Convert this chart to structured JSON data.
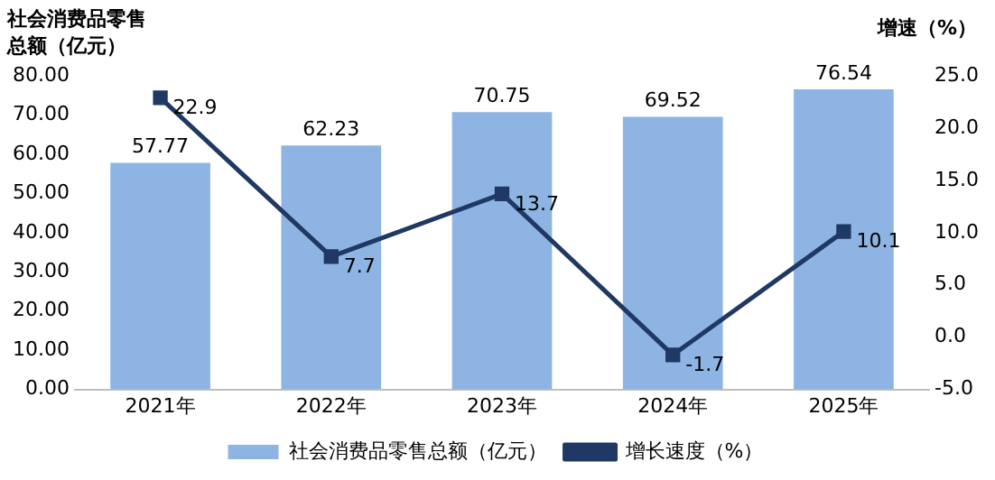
{
  "chart_data": {
    "type": "bar",
    "ylabel": "社会消费品零售总额（亿元）",
    "y2label": "增速（%）",
    "categories": [
      "2021年",
      "2022年",
      "2023年",
      "2024年",
      "2025年"
    ],
    "series": [
      {
        "name": "社会消费品零售总额（亿元）",
        "color": "#8db4e2",
        "values": [
          57.77,
          62.23,
          70.75,
          69.52,
          76.54
        ]
      },
      {
        "name": "增长速度（%）",
        "type": "line",
        "axis": "y2",
        "color": "#1f3864",
        "marker": "square",
        "values": [
          22.9,
          7.7,
          13.7,
          -1.7,
          10.1
        ]
      }
    ],
    "ylim": [
      0,
      80
    ],
    "yticks": [
      {
        "value": 0,
        "label": "0.00"
      },
      {
        "value": 10,
        "label": "10.00"
      },
      {
        "value": 20,
        "label": "20.00"
      },
      {
        "value": 30,
        "label": "30.00"
      },
      {
        "value": 40,
        "label": "40.00"
      },
      {
        "value": 50,
        "label": "50.00"
      },
      {
        "value": 60,
        "label": "60.00"
      },
      {
        "value": 70,
        "label": "70.00"
      },
      {
        "value": 80,
        "label": "80.00"
      }
    ],
    "y2lim": [
      -5,
      25
    ],
    "y2ticks": [
      {
        "value": -5,
        "label": "-5.0"
      },
      {
        "value": 0,
        "label": "0.0"
      },
      {
        "value": 5,
        "label": "5.0"
      },
      {
        "value": 10,
        "label": "10.0"
      },
      {
        "value": 15,
        "label": "15.0"
      },
      {
        "value": 20,
        "label": "20.0"
      },
      {
        "value": 25,
        "label": "25.0"
      }
    ],
    "data_labels": true,
    "grid": false,
    "legend": "bottom"
  }
}
